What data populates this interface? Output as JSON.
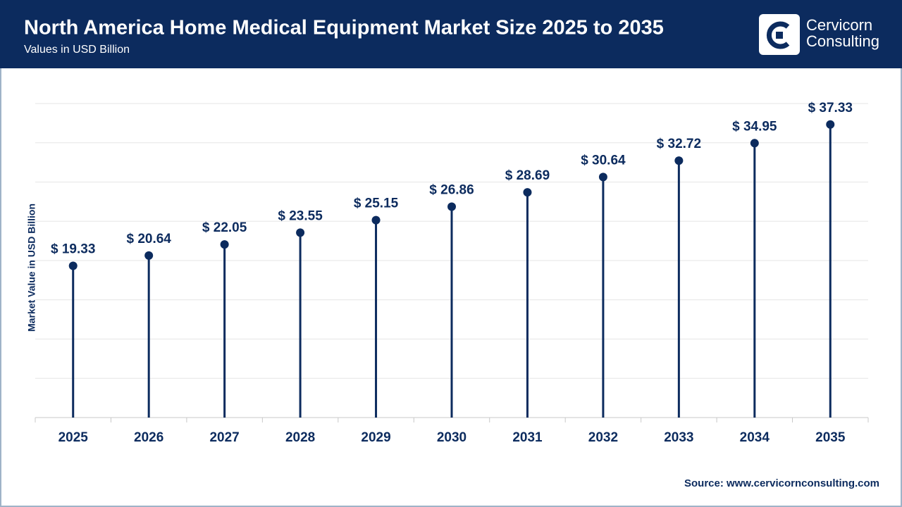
{
  "brand": [
    "Cervicorn",
    "Consulting"
  ],
  "chart_data": {
    "type": "lollipop",
    "title": "North America Home Medical Equipment Market Size 2025 to 2035",
    "subtitle": "Values in USD Billion",
    "y_label": "Market Value in USD Billion",
    "source": "Source: www.cervicornconsulting.com",
    "categories": [
      "2025",
      "2026",
      "2027",
      "2028",
      "2029",
      "2030",
      "2031",
      "2032",
      "2033",
      "2034",
      "2035"
    ],
    "values": [
      19.33,
      20.64,
      22.05,
      23.55,
      25.15,
      26.86,
      28.69,
      30.64,
      32.72,
      34.95,
      37.33
    ],
    "value_labels": [
      "$ 19.33",
      "$ 20.64",
      "$ 22.05",
      "$ 23.55",
      "$ 25.15",
      "$ 26.86",
      "$ 28.69",
      "$ 30.64",
      "$ 32.72",
      "$ 34.95",
      "$ 37.33"
    ],
    "color": "#0c2b5e",
    "ylim": [
      0,
      40
    ],
    "yticks": [
      0,
      5,
      10,
      15,
      20,
      25,
      30,
      35,
      40
    ],
    "grid": true
  }
}
